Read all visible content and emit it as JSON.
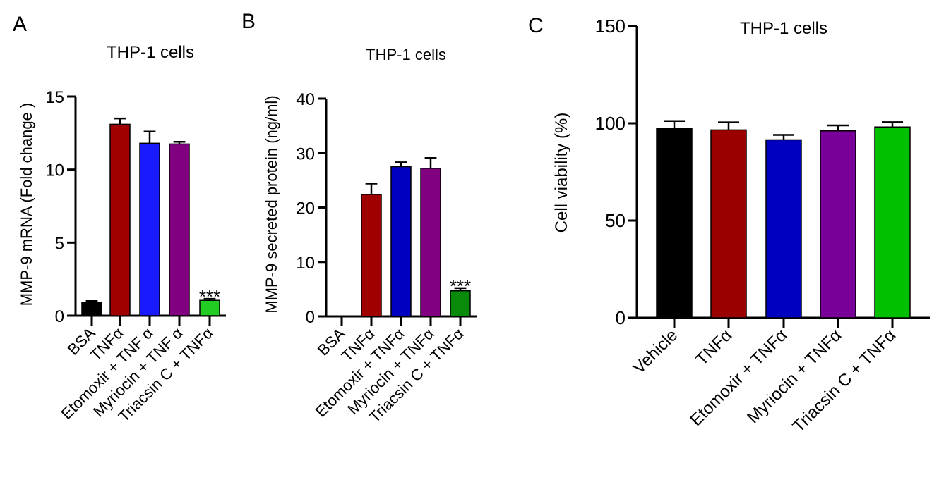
{
  "chart_data": [
    {
      "type": "bar",
      "panel_label": "A",
      "title": "THP-1 cells",
      "xlabel": "",
      "ylabel": "MMP-9 mRNA (Fold change )",
      "ylim": [
        0,
        15
      ],
      "yticks": [
        "0",
        "5",
        "10",
        "15"
      ],
      "categories": [
        "BSA",
        "TNFα",
        "Etomoxir + TNF α",
        "Myriocin + TNF  α",
        "Triacsin C + TNFα"
      ],
      "values": [
        0.9,
        13.1,
        11.8,
        11.75,
        1.05
      ],
      "errors": [
        0.1,
        0.4,
        0.8,
        0.15,
        0.1
      ],
      "colors": [
        "#000000",
        "#a00000",
        "#1a1aff",
        "#800080",
        "#22cc22"
      ],
      "annotations": [
        {
          "category_index": 4,
          "text": "***"
        }
      ]
    },
    {
      "type": "bar",
      "panel_label": "B",
      "title": "THP-1 cells",
      "xlabel": "",
      "ylabel": "MMP-9  secreted protein (ng/ml)",
      "ylim": [
        0,
        40
      ],
      "yticks": [
        "0",
        "10",
        "20",
        "30",
        "40"
      ],
      "categories": [
        "BSA",
        "TNFα",
        "Etomoxir + TNFα",
        "Myriocin + TNFα",
        "Triacsin C + TNFα"
      ],
      "values": [
        0,
        22.4,
        27.5,
        27.2,
        4.7
      ],
      "errors": [
        0,
        2.0,
        0.8,
        1.9,
        0.5
      ],
      "colors": [
        "#000000",
        "#a00000",
        "#0000c0",
        "#800080",
        "#0a8a0a"
      ],
      "annotations": [
        {
          "category_index": 4,
          "text": "***"
        }
      ]
    },
    {
      "type": "bar",
      "panel_label": "C",
      "title": "THP-1 cells",
      "xlabel": "",
      "ylabel": "Cell viability (%)",
      "ylim": [
        0,
        150
      ],
      "yticks": [
        "0",
        "50",
        "100",
        "150"
      ],
      "categories": [
        "Vehicle",
        "TNFα",
        "Etomoxir + TNFα",
        "Myriocin + TNFα",
        "Triacsin C + TNFα"
      ],
      "values": [
        97.5,
        96.6,
        91.5,
        96.1,
        98.1
      ],
      "errors": [
        3.7,
        3.9,
        2.5,
        2.8,
        2.5
      ],
      "colors": [
        "#000000",
        "#9a0000",
        "#0000c0",
        "#780098",
        "#00c000"
      ],
      "annotations": []
    }
  ]
}
